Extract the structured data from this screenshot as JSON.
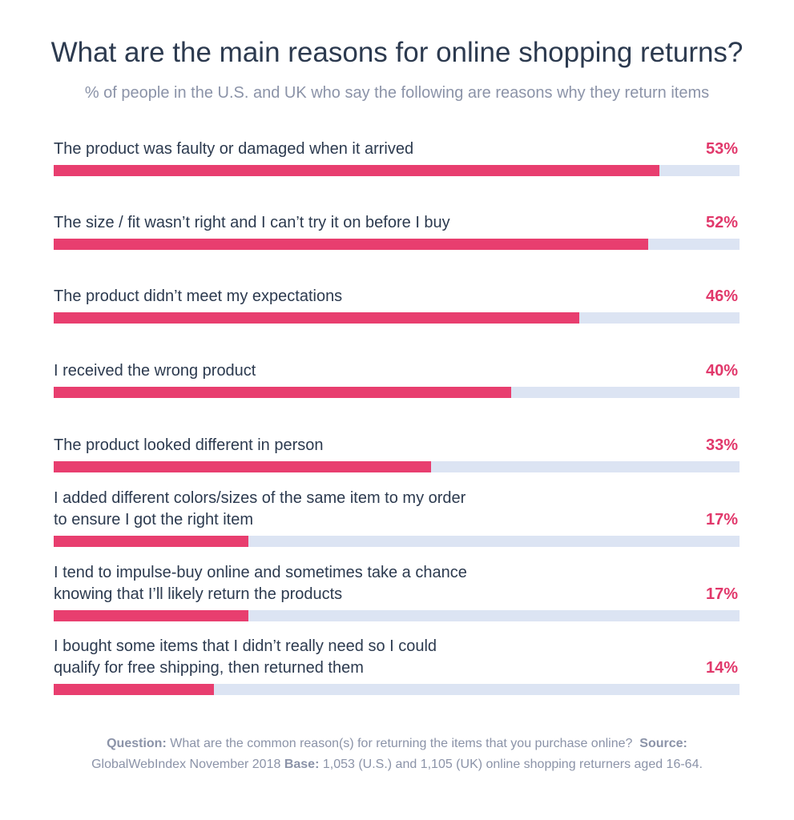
{
  "chart_data": {
    "type": "bar",
    "orientation": "horizontal",
    "title": "What are the main reasons for online shopping returns?",
    "subtitle": "% of people in the U.S. and UK who say the following are reasons why they return items",
    "categories": [
      [
        "The product was faulty or damaged when it arrived"
      ],
      [
        "The size / fit wasn’t right and I can’t try it on before I buy"
      ],
      [
        "The product didn’t meet my expectations"
      ],
      [
        "I received the wrong product"
      ],
      [
        "The product looked different in person"
      ],
      [
        "I added different colors/sizes of the same item to my order",
        "to ensure I got the right item"
      ],
      [
        "I tend to impulse-buy online and sometimes take a chance",
        "knowing that I’ll likely return the products"
      ],
      [
        "I bought some items that I didn’t really need so I could",
        "qualify for free shipping, then returned them"
      ]
    ],
    "values": [
      53,
      52,
      46,
      40,
      33,
      17,
      17,
      14
    ],
    "value_labels": [
      "53%",
      "52%",
      "46%",
      "40%",
      "33%",
      "17%",
      "17%",
      "14%"
    ],
    "xlim": [
      0,
      60
    ],
    "grid": false,
    "legend": "none"
  },
  "colors": {
    "bar": "#e83e6f",
    "track": "#dce4f3",
    "value_text": "#e1386b"
  },
  "footer": {
    "question_label": "Question:",
    "question_text": " What are the common reason(s) for returning the items that you purchase online?",
    "source_label": "Source:",
    "source_text": "GlobalWebIndex November 2018",
    "base_label": "Base:",
    "base_text": "  1,053 (U.S.) and 1,105 (UK) online shopping returners aged 16-64."
  }
}
